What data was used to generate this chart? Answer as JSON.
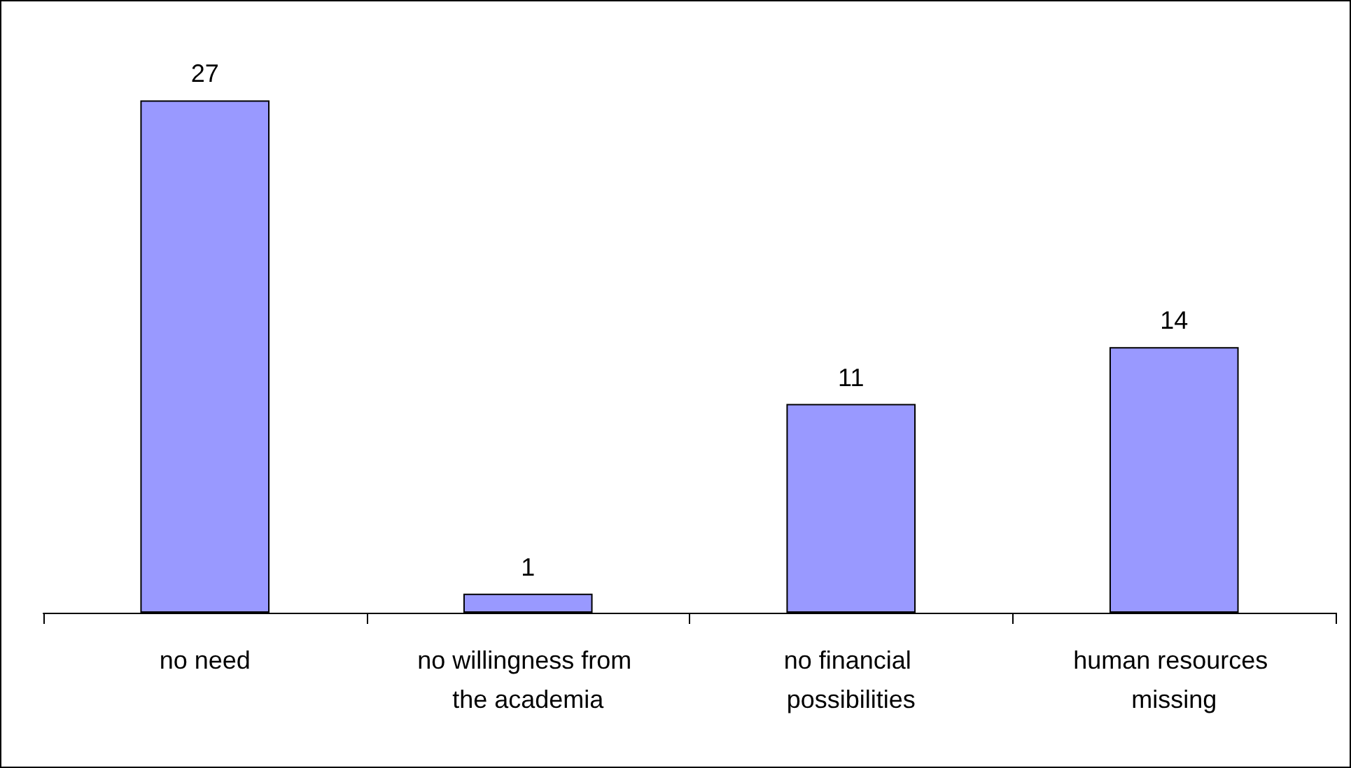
{
  "chart_data": {
    "type": "bar",
    "categories": [
      "no need",
      "no willingness from the academia",
      "no financial possibilities",
      "human resources missing"
    ],
    "values": [
      27,
      1,
      11,
      14
    ],
    "color": "#9999ff",
    "data_labels": true
  }
}
